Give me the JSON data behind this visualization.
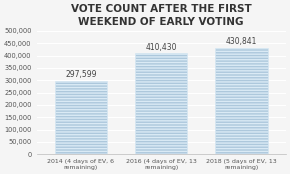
{
  "title": "VOTE COUNT AFTER THE FIRST\nWEEKEND OF EARLY VOTING",
  "categories": [
    "2014 (4 days of EV, 6\nremaining)",
    "2016 (4 days of EV, 13\nremaining)",
    "2018 (5 days of EV, 13\nremaining)"
  ],
  "values": [
    297599,
    410430,
    430841
  ],
  "labels": [
    "297,599",
    "410,430",
    "430,841"
  ],
  "bar_color": "#adc8dc",
  "stripe_color": "#c8dce8",
  "ylim": [
    0,
    500000
  ],
  "yticks": [
    0,
    50000,
    100000,
    150000,
    200000,
    250000,
    300000,
    350000,
    400000,
    450000,
    500000
  ],
  "ytick_labels": [
    "0",
    "50,000",
    "100,000",
    "150,000",
    "200,000",
    "250,000",
    "300,000",
    "350,000",
    "400,000",
    "450,000",
    "500,000"
  ],
  "background_color": "#f5f5f5",
  "title_fontsize": 7.5,
  "label_fontsize": 5.5,
  "tick_fontsize": 4.8,
  "xlabel_fontsize": 4.5,
  "bar_width": 0.65
}
